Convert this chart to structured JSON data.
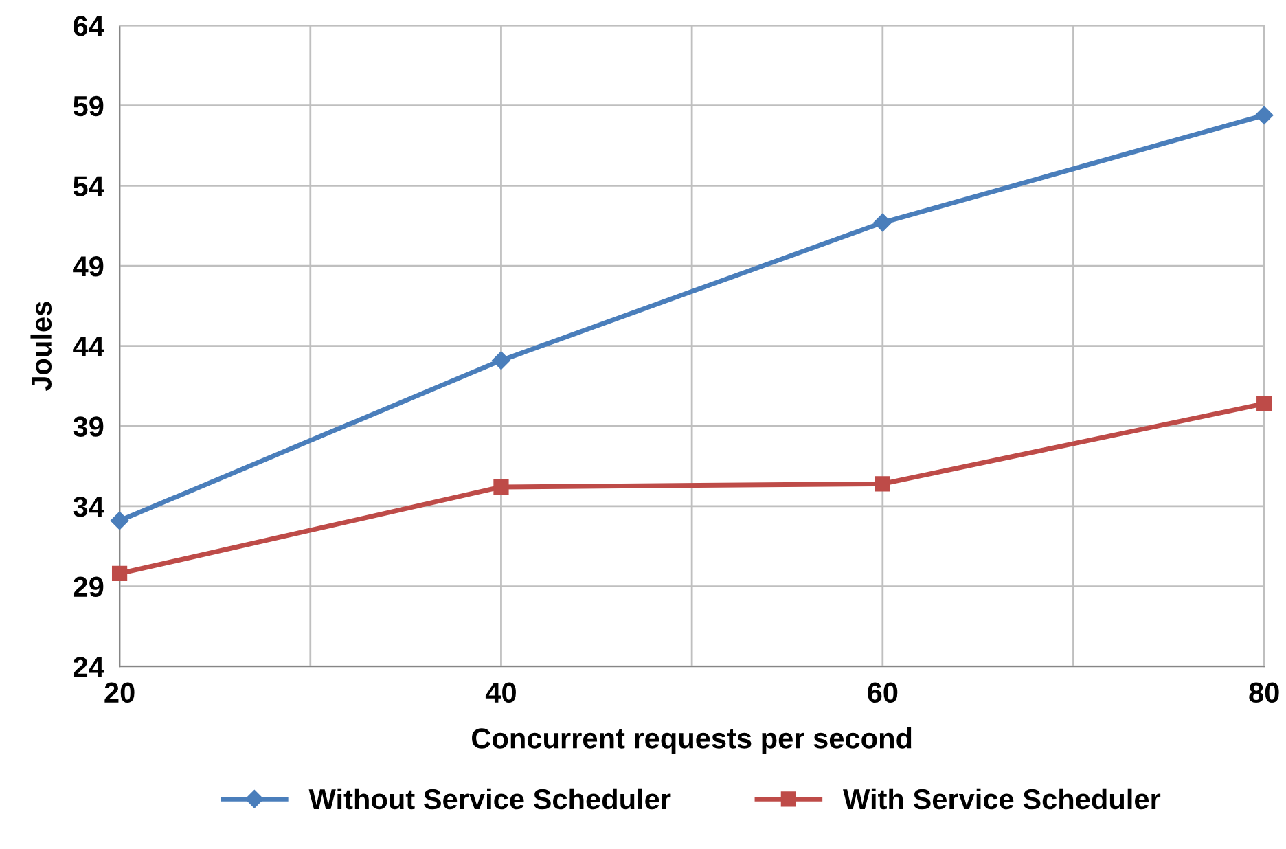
{
  "chart_data": {
    "type": "line",
    "xlabel": "Concurrent requests per second",
    "ylabel": "Joules",
    "x": [
      20,
      40,
      60,
      80
    ],
    "series": [
      {
        "name": "Without Service Scheduler",
        "color": "#4a7ebb",
        "marker": "diamond",
        "values": [
          33.1,
          43.1,
          51.7,
          58.4
        ]
      },
      {
        "name": "With Service Scheduler",
        "color": "#be4b48",
        "marker": "square",
        "values": [
          29.8,
          35.2,
          35.4,
          40.4
        ]
      }
    ],
    "xlim": [
      20,
      80
    ],
    "xticks": [
      20,
      {
        "value": 30,
        "label": null
      },
      40,
      {
        "value": 50,
        "label": null
      },
      60,
      {
        "value": 70,
        "label": null
      },
      80
    ],
    "ylim": [
      24,
      64
    ],
    "yticks": [
      24,
      29,
      34,
      39,
      44,
      49,
      54,
      59,
      64
    ],
    "grid": true,
    "legend": "bottom",
    "line_style": "solid"
  }
}
